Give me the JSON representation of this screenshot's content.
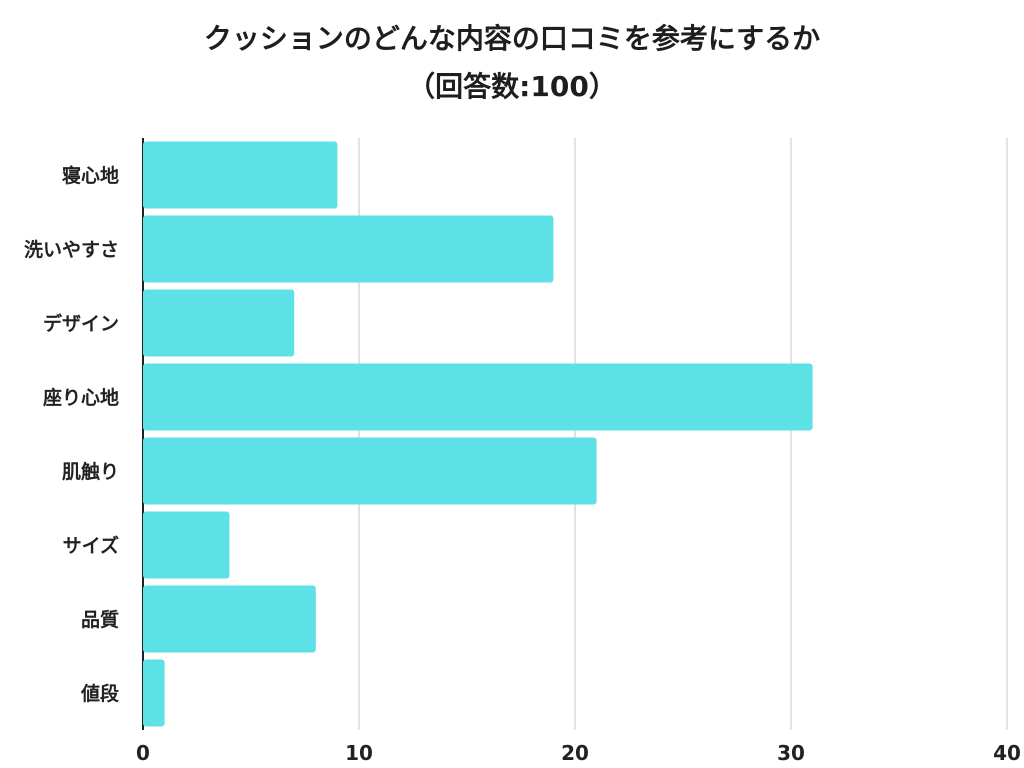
{
  "chart_data": {
    "type": "bar",
    "orientation": "horizontal",
    "title": "クッションのどんな内容の口コミを参考にするか",
    "subtitle": "（回答数:100）",
    "categories": [
      "寝心地",
      "洗いやすさ",
      "デザイン",
      "座り心地",
      "肌触り",
      "サイズ",
      "品質",
      "値段"
    ],
    "values": [
      9,
      19,
      7,
      31,
      21,
      4,
      8,
      1
    ],
    "x_ticks": [
      0,
      10,
      20,
      30,
      40
    ],
    "xlim": [
      0,
      40
    ],
    "xlabel": "",
    "ylabel": "",
    "grid": "vertical",
    "legend": "none",
    "bar_color": "#5ce1e6",
    "grid_color": "#d9d9d9",
    "axis_color": "#222222"
  }
}
